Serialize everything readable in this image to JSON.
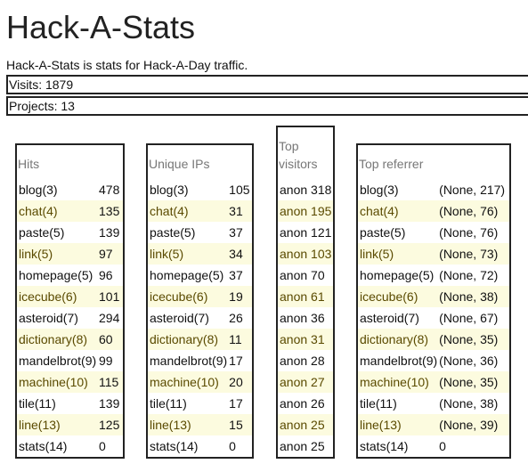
{
  "page": {
    "title": "Hack-A-Stats",
    "description": "Hack-A-Stats is stats for Hack-A-Day traffic.",
    "visits_text": "Visits: 1879",
    "projects_text": "Projects: 13"
  },
  "tables": {
    "hits": {
      "header": "Hits",
      "rows": [
        {
          "label": "blog(3)",
          "value": "478"
        },
        {
          "label": "chat(4)",
          "value": "135"
        },
        {
          "label": "paste(5)",
          "value": "139"
        },
        {
          "label": "link(5)",
          "value": "97"
        },
        {
          "label": "homepage(5)",
          "value": "96"
        },
        {
          "label": "icecube(6)",
          "value": "101"
        },
        {
          "label": "asteroid(7)",
          "value": "294"
        },
        {
          "label": "dictionary(8)",
          "value": "60"
        },
        {
          "label": "mandelbrot(9)",
          "value": "99"
        },
        {
          "label": "machine(10)",
          "value": "115"
        },
        {
          "label": "tile(11)",
          "value": "139"
        },
        {
          "label": "line(13)",
          "value": "125"
        },
        {
          "label": "stats(14)",
          "value": "0"
        }
      ]
    },
    "unique_ips": {
      "header": "Unique IPs",
      "rows": [
        {
          "label": "blog(3)",
          "value": "105"
        },
        {
          "label": "chat(4)",
          "value": "31"
        },
        {
          "label": "paste(5)",
          "value": "37"
        },
        {
          "label": "link(5)",
          "value": "34"
        },
        {
          "label": "homepage(5)",
          "value": "37"
        },
        {
          "label": "icecube(6)",
          "value": "19"
        },
        {
          "label": "asteroid(7)",
          "value": "26"
        },
        {
          "label": "dictionary(8)",
          "value": "11"
        },
        {
          "label": "mandelbrot(9)",
          "value": "17"
        },
        {
          "label": "machine(10)",
          "value": "20"
        },
        {
          "label": "tile(11)",
          "value": "17"
        },
        {
          "label": "line(13)",
          "value": "15"
        },
        {
          "label": "stats(14)",
          "value": "0"
        }
      ]
    },
    "top_visitors": {
      "header": "Top visitors",
      "rows": [
        {
          "label": "anon 318"
        },
        {
          "label": "anon 195"
        },
        {
          "label": "anon 121"
        },
        {
          "label": "anon 103"
        },
        {
          "label": "anon 70"
        },
        {
          "label": "anon 61"
        },
        {
          "label": "anon 36"
        },
        {
          "label": "anon 31"
        },
        {
          "label": "anon 28"
        },
        {
          "label": "anon 27"
        },
        {
          "label": "anon 26"
        },
        {
          "label": "anon 25"
        },
        {
          "label": "anon 25"
        }
      ]
    },
    "top_referrer": {
      "header": "Top referrer",
      "rows": [
        {
          "label": "blog(3)",
          "value": "(None, 217)"
        },
        {
          "label": "chat(4)",
          "value": "(None, 76)"
        },
        {
          "label": "paste(5)",
          "value": "(None, 76)"
        },
        {
          "label": "link(5)",
          "value": "(None, 73)"
        },
        {
          "label": "homepage(5)",
          "value": "(None, 72)"
        },
        {
          "label": "icecube(6)",
          "value": "(None, 38)"
        },
        {
          "label": "asteroid(7)",
          "value": "(None, 67)"
        },
        {
          "label": "dictionary(8)",
          "value": "(None, 35)"
        },
        {
          "label": "mandelbrot(9)",
          "value": "(None, 36)"
        },
        {
          "label": "machine(10)",
          "value": "(None, 35)"
        },
        {
          "label": "tile(11)",
          "value": "(None, 38)"
        },
        {
          "label": "line(13)",
          "value": "(None, 39)"
        },
        {
          "label": "stats(14)",
          "value": "0"
        }
      ]
    }
  },
  "colors": {
    "row_highlight": "#fcfbdf",
    "border": "#222222",
    "header_text": "#777777"
  }
}
